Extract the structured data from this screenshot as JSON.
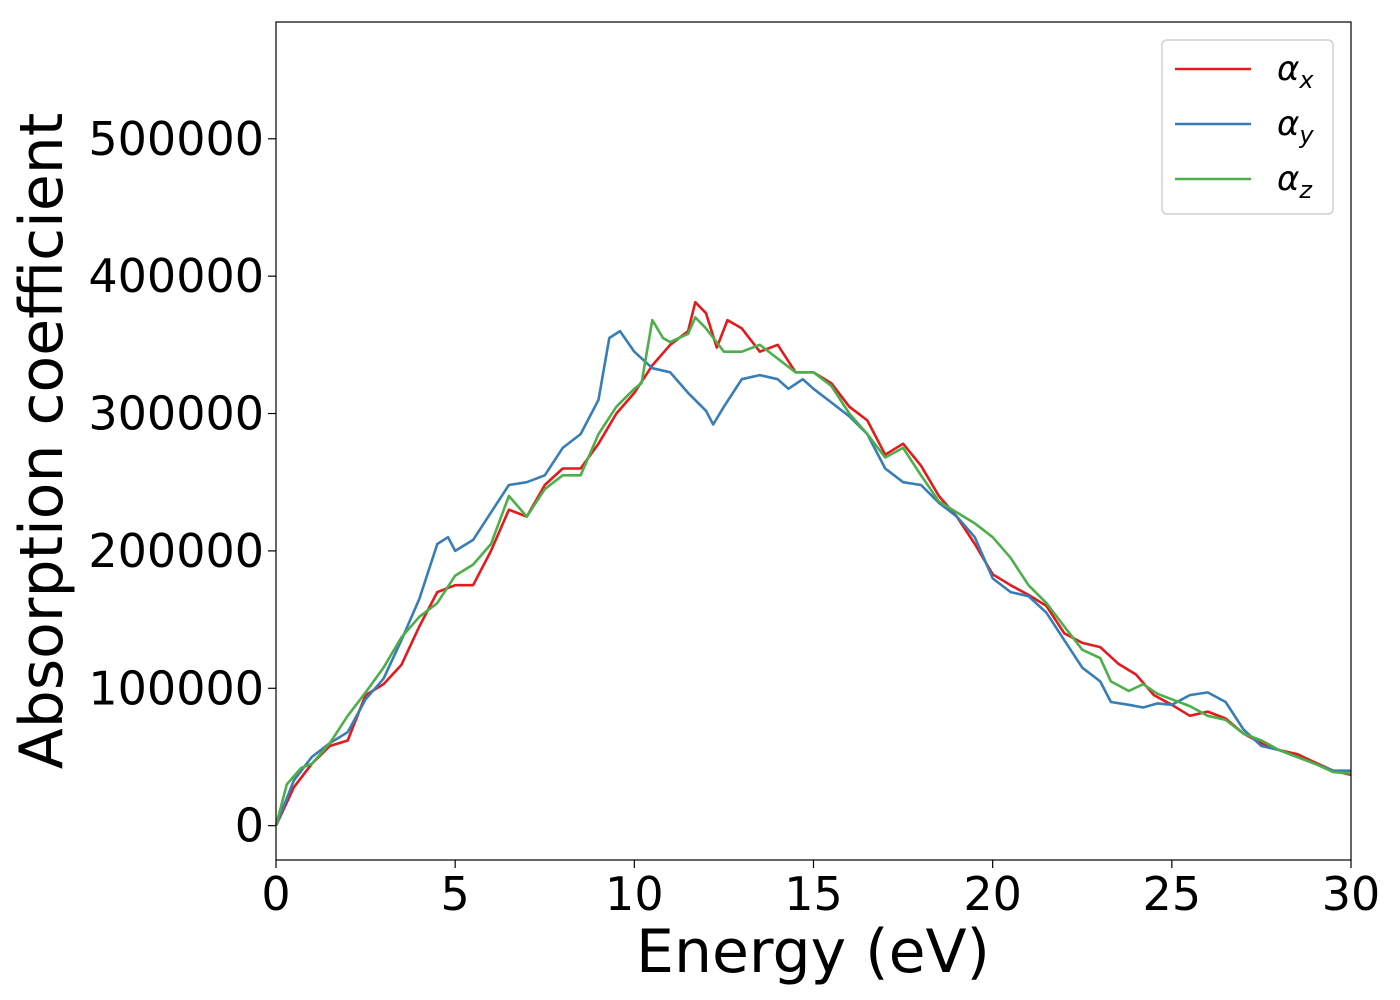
{
  "chart_data": {
    "type": "line",
    "title": "",
    "xlabel": "Energy (eV)",
    "ylabel": "Absorption coefficient",
    "xlim": [
      0,
      30
    ],
    "ylim": [
      -25000,
      585000
    ],
    "xticks": [
      0,
      5,
      10,
      15,
      20,
      25,
      30
    ],
    "yticks": [
      0,
      100000,
      200000,
      300000,
      400000,
      500000
    ],
    "grid": false,
    "legend_position": "top-right",
    "series": [
      {
        "name": "α",
        "subscript": "x",
        "color": "#e41a1c",
        "points": [
          [
            0,
            0
          ],
          [
            0.5,
            28000
          ],
          [
            1,
            45000
          ],
          [
            1.5,
            58000
          ],
          [
            2,
            62000
          ],
          [
            2.5,
            95000
          ],
          [
            3,
            103000
          ],
          [
            3.5,
            117000
          ],
          [
            4,
            145000
          ],
          [
            4.5,
            170000
          ],
          [
            5,
            175000
          ],
          [
            5.5,
            175000
          ],
          [
            6,
            200000
          ],
          [
            6.5,
            230000
          ],
          [
            7,
            225000
          ],
          [
            7.5,
            248000
          ],
          [
            8,
            260000
          ],
          [
            8.5,
            260000
          ],
          [
            9,
            278000
          ],
          [
            9.5,
            300000
          ],
          [
            10,
            315000
          ],
          [
            10.5,
            335000
          ],
          [
            11,
            350000
          ],
          [
            11.5,
            360000
          ],
          [
            11.7,
            381000
          ],
          [
            12,
            373000
          ],
          [
            12.3,
            348000
          ],
          [
            12.6,
            368000
          ],
          [
            13,
            362000
          ],
          [
            13.5,
            345000
          ],
          [
            14,
            350000
          ],
          [
            14.5,
            330000
          ],
          [
            15,
            330000
          ],
          [
            15.5,
            322000
          ],
          [
            16,
            305000
          ],
          [
            16.5,
            295000
          ],
          [
            17,
            270000
          ],
          [
            17.5,
            278000
          ],
          [
            18,
            262000
          ],
          [
            18.5,
            240000
          ],
          [
            19,
            225000
          ],
          [
            19.5,
            205000
          ],
          [
            20,
            183000
          ],
          [
            20.5,
            175000
          ],
          [
            21,
            168000
          ],
          [
            21.5,
            160000
          ],
          [
            22,
            140000
          ],
          [
            22.5,
            133000
          ],
          [
            23,
            130000
          ],
          [
            23.5,
            118000
          ],
          [
            24,
            110000
          ],
          [
            24.5,
            95000
          ],
          [
            25,
            88000
          ],
          [
            25.5,
            80000
          ],
          [
            26,
            83000
          ],
          [
            26.5,
            78000
          ],
          [
            27,
            67000
          ],
          [
            27.5,
            60000
          ],
          [
            28,
            55000
          ],
          [
            28.5,
            52000
          ],
          [
            29,
            46000
          ],
          [
            29.5,
            40000
          ],
          [
            30,
            37000
          ]
        ]
      },
      {
        "name": "α",
        "subscript": "y",
        "color": "#377eb8",
        "points": [
          [
            0,
            0
          ],
          [
            0.5,
            33000
          ],
          [
            1,
            50000
          ],
          [
            1.5,
            60000
          ],
          [
            2,
            68000
          ],
          [
            2.5,
            92000
          ],
          [
            3,
            107000
          ],
          [
            3.5,
            135000
          ],
          [
            4,
            165000
          ],
          [
            4.5,
            205000
          ],
          [
            4.8,
            210000
          ],
          [
            5,
            200000
          ],
          [
            5.5,
            208000
          ],
          [
            6,
            228000
          ],
          [
            6.5,
            248000
          ],
          [
            7,
            250000
          ],
          [
            7.5,
            255000
          ],
          [
            8,
            275000
          ],
          [
            8.5,
            285000
          ],
          [
            9,
            310000
          ],
          [
            9.3,
            355000
          ],
          [
            9.6,
            360000
          ],
          [
            10,
            345000
          ],
          [
            10.5,
            333000
          ],
          [
            11,
            330000
          ],
          [
            11.5,
            315000
          ],
          [
            12,
            302000
          ],
          [
            12.2,
            292000
          ],
          [
            12.5,
            305000
          ],
          [
            13,
            325000
          ],
          [
            13.5,
            328000
          ],
          [
            14,
            325000
          ],
          [
            14.3,
            318000
          ],
          [
            14.7,
            325000
          ],
          [
            15,
            318000
          ],
          [
            15.5,
            308000
          ],
          [
            16,
            298000
          ],
          [
            16.5,
            285000
          ],
          [
            17,
            260000
          ],
          [
            17.5,
            250000
          ],
          [
            18,
            248000
          ],
          [
            18.5,
            235000
          ],
          [
            19,
            225000
          ],
          [
            19.5,
            210000
          ],
          [
            20,
            180000
          ],
          [
            20.5,
            170000
          ],
          [
            21,
            167000
          ],
          [
            21.5,
            155000
          ],
          [
            22,
            135000
          ],
          [
            22.5,
            115000
          ],
          [
            23,
            105000
          ],
          [
            23.3,
            90000
          ],
          [
            23.8,
            88000
          ],
          [
            24.2,
            86000
          ],
          [
            24.6,
            89000
          ],
          [
            25,
            88000
          ],
          [
            25.5,
            95000
          ],
          [
            26,
            97000
          ],
          [
            26.5,
            90000
          ],
          [
            27,
            70000
          ],
          [
            27.5,
            58000
          ],
          [
            28,
            55000
          ],
          [
            28.5,
            50000
          ],
          [
            29,
            45000
          ],
          [
            29.5,
            40000
          ],
          [
            30,
            40000
          ]
        ]
      },
      {
        "name": "α",
        "subscript": "z",
        "color": "#4daf4a",
        "points": [
          [
            0,
            0
          ],
          [
            0.3,
            30000
          ],
          [
            0.7,
            42000
          ],
          [
            1,
            45000
          ],
          [
            1.5,
            60000
          ],
          [
            2,
            80000
          ],
          [
            2.5,
            97000
          ],
          [
            3,
            115000
          ],
          [
            3.5,
            137000
          ],
          [
            4,
            152000
          ],
          [
            4.5,
            162000
          ],
          [
            5,
            182000
          ],
          [
            5.5,
            190000
          ],
          [
            6,
            205000
          ],
          [
            6.5,
            240000
          ],
          [
            7,
            225000
          ],
          [
            7.5,
            245000
          ],
          [
            8,
            255000
          ],
          [
            8.5,
            255000
          ],
          [
            9,
            285000
          ],
          [
            9.5,
            305000
          ],
          [
            10,
            318000
          ],
          [
            10.2,
            322000
          ],
          [
            10.5,
            368000
          ],
          [
            10.8,
            355000
          ],
          [
            11,
            352000
          ],
          [
            11.5,
            358000
          ],
          [
            11.7,
            370000
          ],
          [
            12,
            362000
          ],
          [
            12.5,
            345000
          ],
          [
            13,
            345000
          ],
          [
            13.5,
            350000
          ],
          [
            14,
            340000
          ],
          [
            14.5,
            330000
          ],
          [
            15,
            330000
          ],
          [
            15.5,
            320000
          ],
          [
            16,
            300000
          ],
          [
            16.5,
            285000
          ],
          [
            17,
            268000
          ],
          [
            17.5,
            275000
          ],
          [
            18,
            255000
          ],
          [
            18.5,
            236000
          ],
          [
            19,
            228000
          ],
          [
            19.5,
            220000
          ],
          [
            20,
            210000
          ],
          [
            20.5,
            195000
          ],
          [
            21,
            175000
          ],
          [
            21.5,
            162000
          ],
          [
            22,
            145000
          ],
          [
            22.5,
            128000
          ],
          [
            23,
            122000
          ],
          [
            23.3,
            105000
          ],
          [
            23.8,
            98000
          ],
          [
            24.2,
            103000
          ],
          [
            24.6,
            96000
          ],
          [
            25,
            92000
          ],
          [
            25.5,
            87000
          ],
          [
            26,
            80000
          ],
          [
            26.5,
            77000
          ],
          [
            27,
            67000
          ],
          [
            27.5,
            62000
          ],
          [
            28,
            55000
          ],
          [
            28.5,
            50000
          ],
          [
            29,
            45000
          ],
          [
            29.5,
            39000
          ],
          [
            30,
            38000
          ]
        ]
      }
    ]
  }
}
